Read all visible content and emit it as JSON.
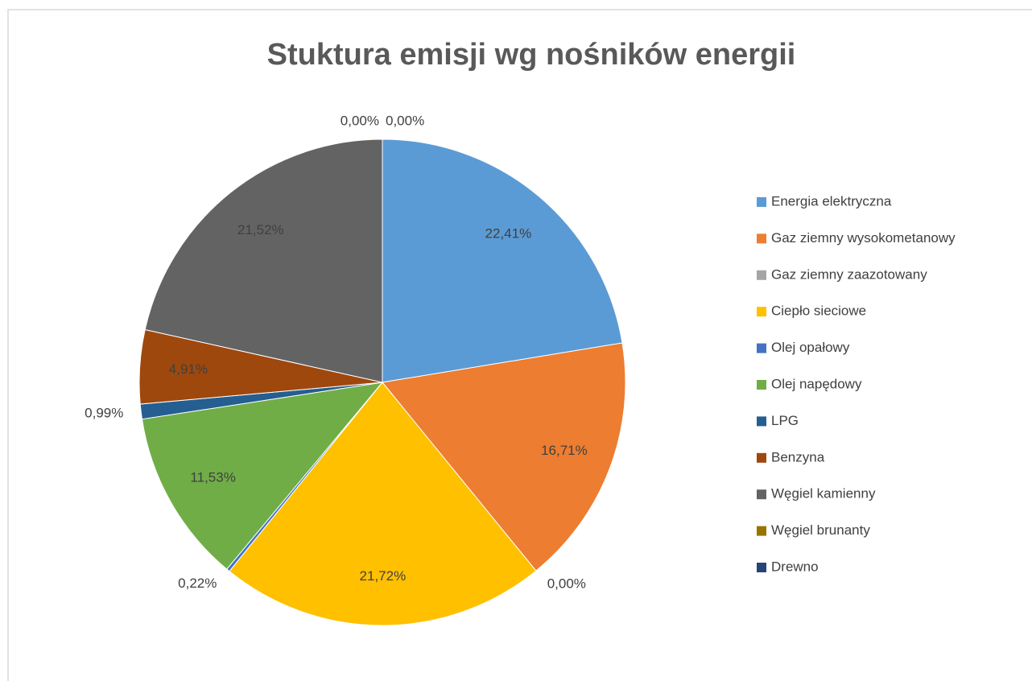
{
  "chart_data": {
    "type": "pie",
    "title": "Stuktura emisji wg nośników energii",
    "categories": [
      "Energia elektryczna",
      "Gaz ziemny wysokometanowy",
      "Gaz ziemny zaazotowany",
      "Ciepło sieciowe",
      "Olej opałowy",
      "Olej napędowy",
      "LPG",
      "Benzyna",
      "Węgiel kamienny",
      "Węgiel brunanty",
      "Drewno"
    ],
    "values": [
      22.41,
      16.71,
      0.0,
      21.72,
      0.22,
      11.53,
      0.99,
      4.91,
      21.52,
      0.0,
      0.0
    ],
    "value_labels": [
      "22,41%",
      "16,71%",
      "0,00%",
      "21,72%",
      "0,22%",
      "11,53%",
      "0,99%",
      "4,91%",
      "21,52%",
      "0,00%",
      "0,00%"
    ],
    "colors": [
      "#5b9bd5",
      "#ed7d31",
      "#a5a5a5",
      "#ffc000",
      "#4472c4",
      "#70ad47",
      "#255e91",
      "#9e480e",
      "#636363",
      "#997300",
      "#264478"
    ],
    "legend": "right"
  }
}
